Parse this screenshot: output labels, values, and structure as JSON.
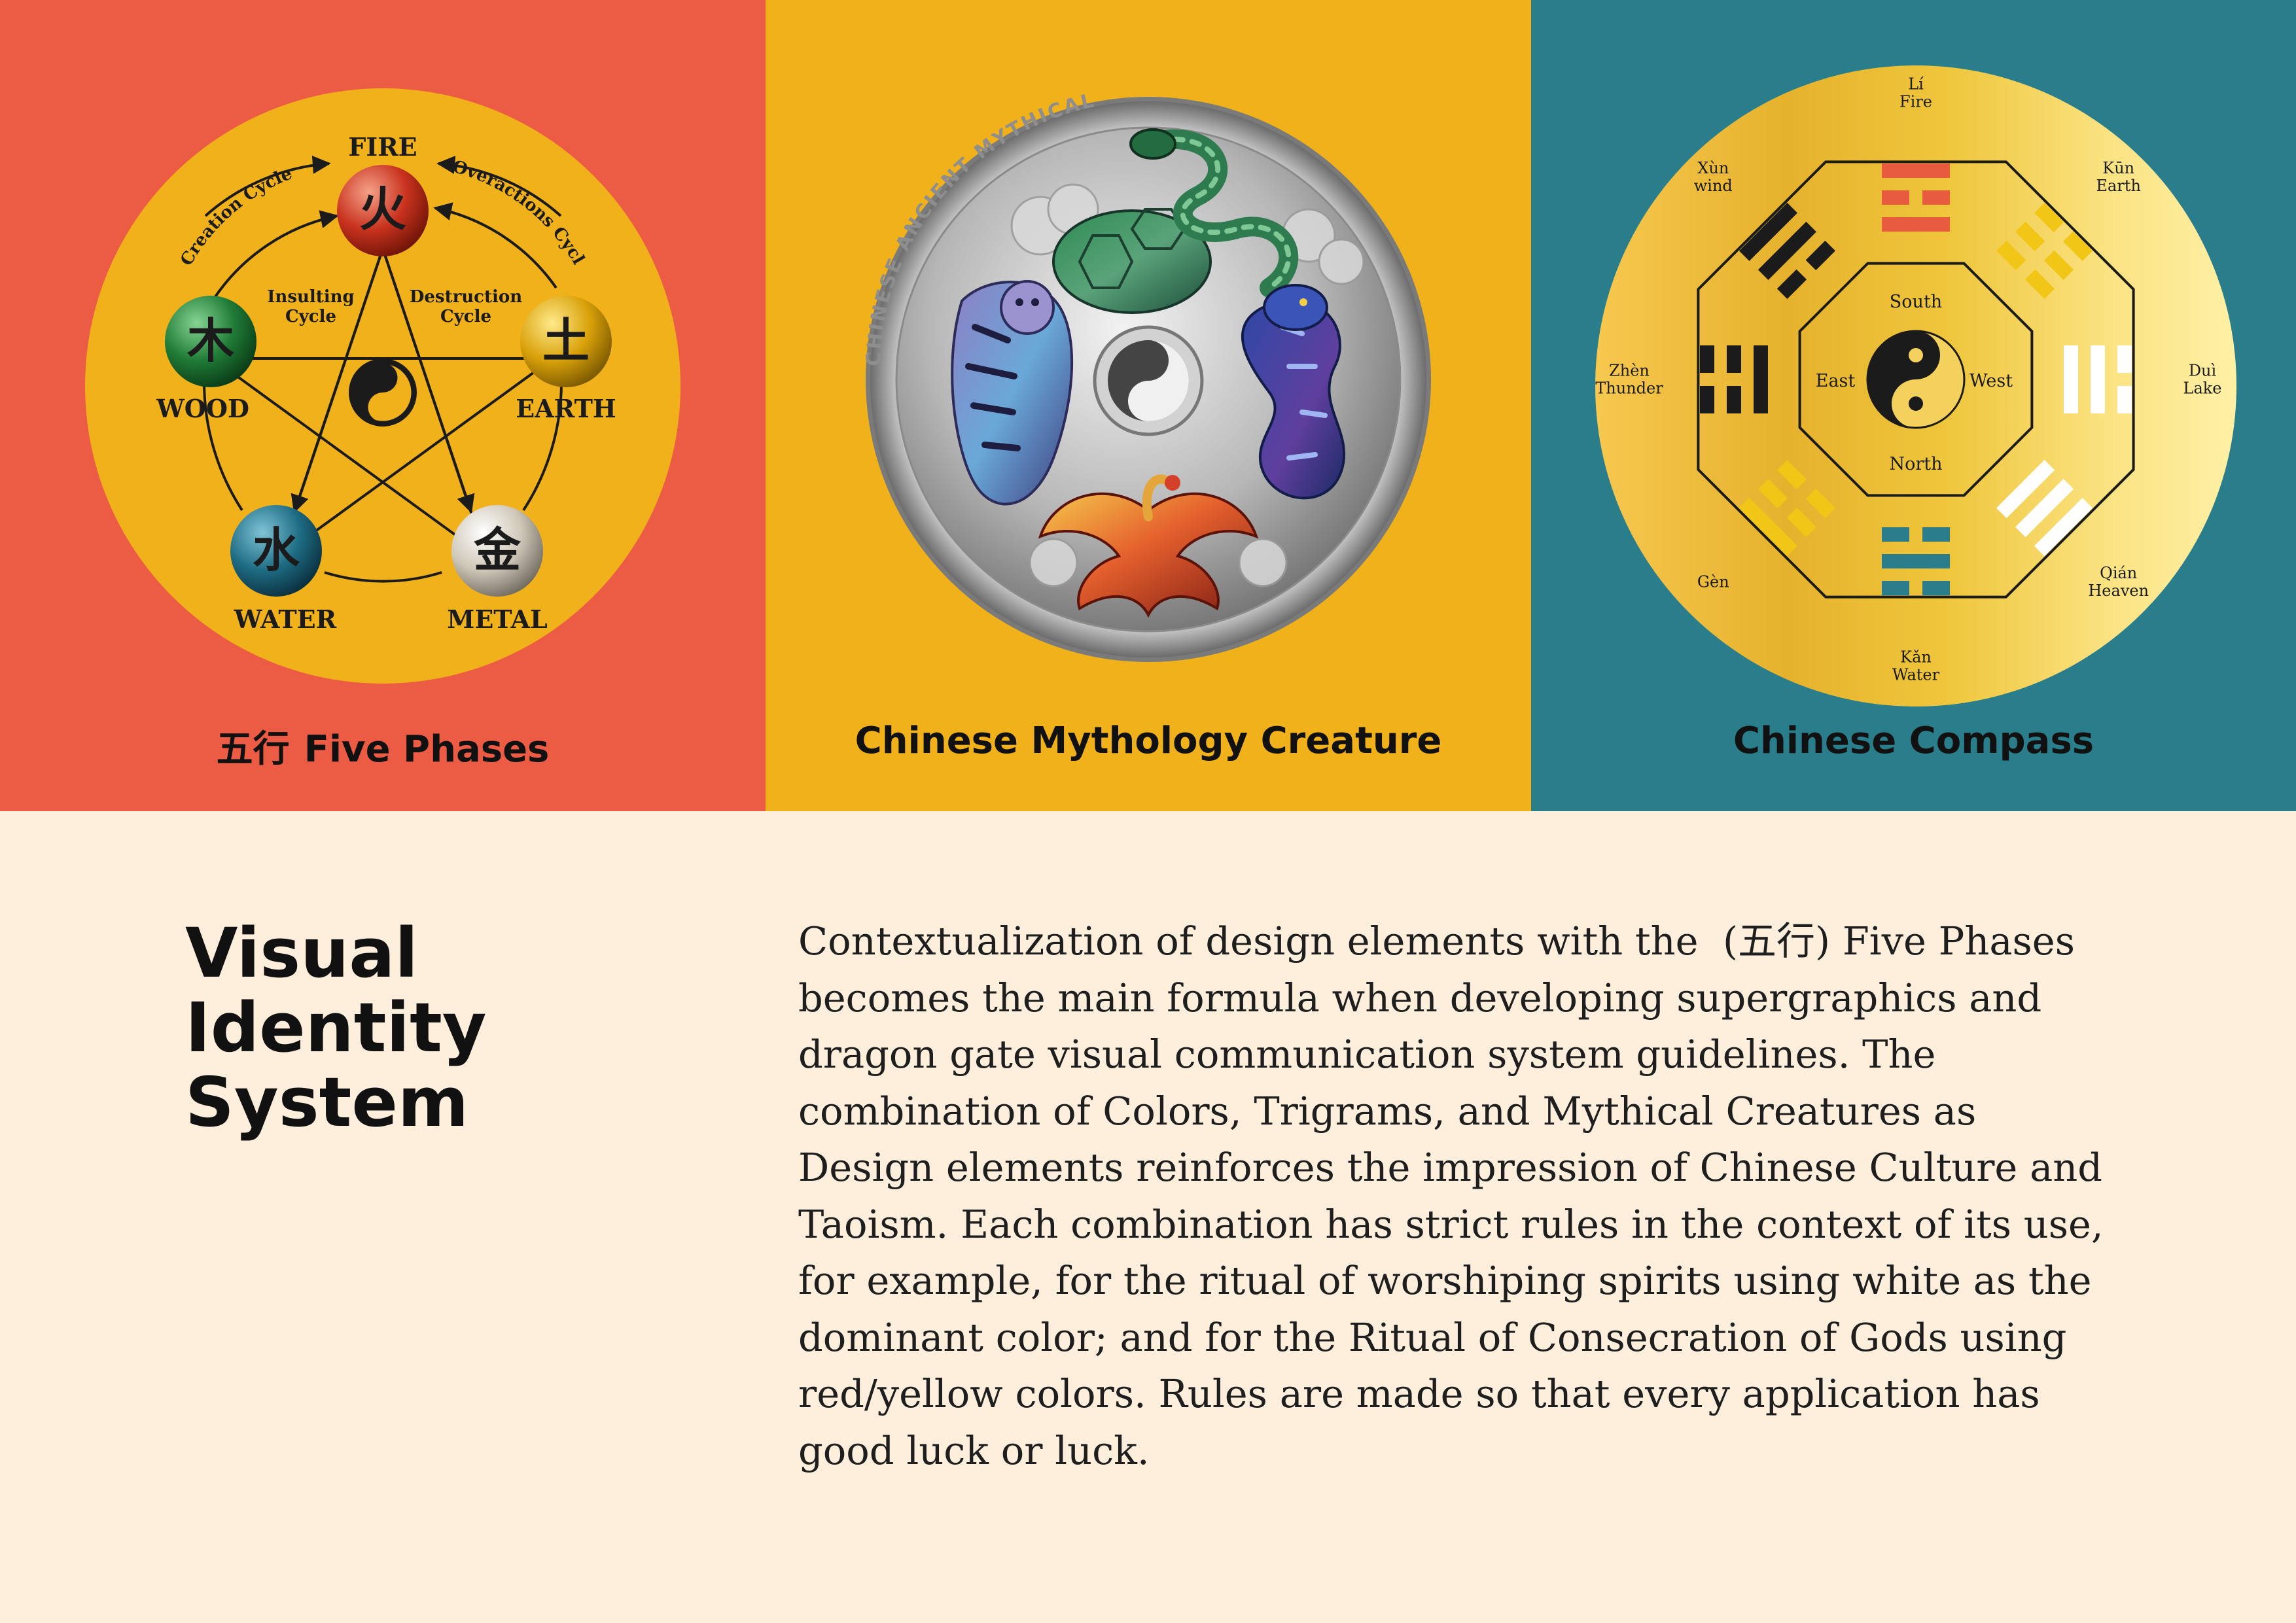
{
  "colors": {
    "fire_panel": "#ec5b43",
    "creature_panel": "#f1b11b",
    "compass_panel": "#2a7d8b",
    "page_bg": "#fdefdc"
  },
  "five_phases": {
    "caption_zh": "五行",
    "caption": "Five Phases",
    "elements": [
      {
        "label": "FIRE",
        "glyph": "火",
        "color": "#c8321e"
      },
      {
        "label": "EARTH",
        "glyph": "土",
        "color": "#d9a10a"
      },
      {
        "label": "METAL",
        "glyph": "金",
        "color": "#cfc7b8"
      },
      {
        "label": "WATER",
        "glyph": "水",
        "color": "#1e6c84"
      },
      {
        "label": "WOOD",
        "glyph": "木",
        "color": "#1f7a36"
      }
    ],
    "creation_cycle": "Creation Cycle",
    "overactions_cycle": "Overactions Cycle",
    "insulting_cycle": [
      "Insulting",
      "Cycle"
    ],
    "destruction_cycle": [
      "Destruction",
      "Cycle"
    ]
  },
  "creature": {
    "caption": "Chinese Mythology Creature",
    "coin_inscription": "CHINESE ANCIENT MYTHICAL CREATURES",
    "creature_icons": [
      "snake-turtle-icon",
      "tiger-icon",
      "dragon-icon",
      "phoenix-icon",
      "yin-yang-icon"
    ]
  },
  "compass": {
    "caption": "Chinese Compass",
    "inner_directions": {
      "south": "South",
      "north": "North",
      "east": "East",
      "west": "West"
    },
    "trigrams": [
      {
        "name": "Lí",
        "element": "Fire",
        "lines": [
          1,
          0,
          1
        ],
        "color": "#e95b3f"
      },
      {
        "name": "Kūn",
        "element": "Earth",
        "lines": [
          0,
          0,
          0
        ],
        "color": "#f1c617"
      },
      {
        "name": "Duì",
        "element": "Lake",
        "lines": [
          0,
          1,
          1
        ],
        "color": "#ffffff"
      },
      {
        "name": "Qián",
        "element": "Heaven",
        "lines": [
          1,
          1,
          1
        ],
        "color": "#ffffff"
      },
      {
        "name": "Kǎn",
        "element": "Water",
        "lines": [
          0,
          1,
          0
        ],
        "color": "#2a7d8b"
      },
      {
        "name": "Gèn",
        "element": "",
        "lines": [
          1,
          0,
          0
        ],
        "color": "#f1c617"
      },
      {
        "name": "Zhèn",
        "element": "Thunder",
        "lines": [
          0,
          0,
          1
        ],
        "color": "#1b1b1b"
      },
      {
        "name": "Xùn",
        "element": "wind",
        "lines": [
          1,
          1,
          0
        ],
        "color": "#1b1b1b"
      }
    ]
  },
  "heading": [
    "Visual",
    "Identity",
    "System"
  ],
  "body": "Contextualization of design elements with the  (五行) Five Phases becomes the main formula when developing supergraphics and dragon gate visual communication system guidelines. The combination of Colors, Trigrams, and Mythical Creatures as Design elements reinforces the impression of Chinese Culture and Taoism. Each combination has strict rules in the context of its use, for example, for the ritual of worshiping spirits using white as the dominant color; and for the Ritual of Consecration of Gods using red/yellow colors. Rules are made so that every application has good luck or luck."
}
